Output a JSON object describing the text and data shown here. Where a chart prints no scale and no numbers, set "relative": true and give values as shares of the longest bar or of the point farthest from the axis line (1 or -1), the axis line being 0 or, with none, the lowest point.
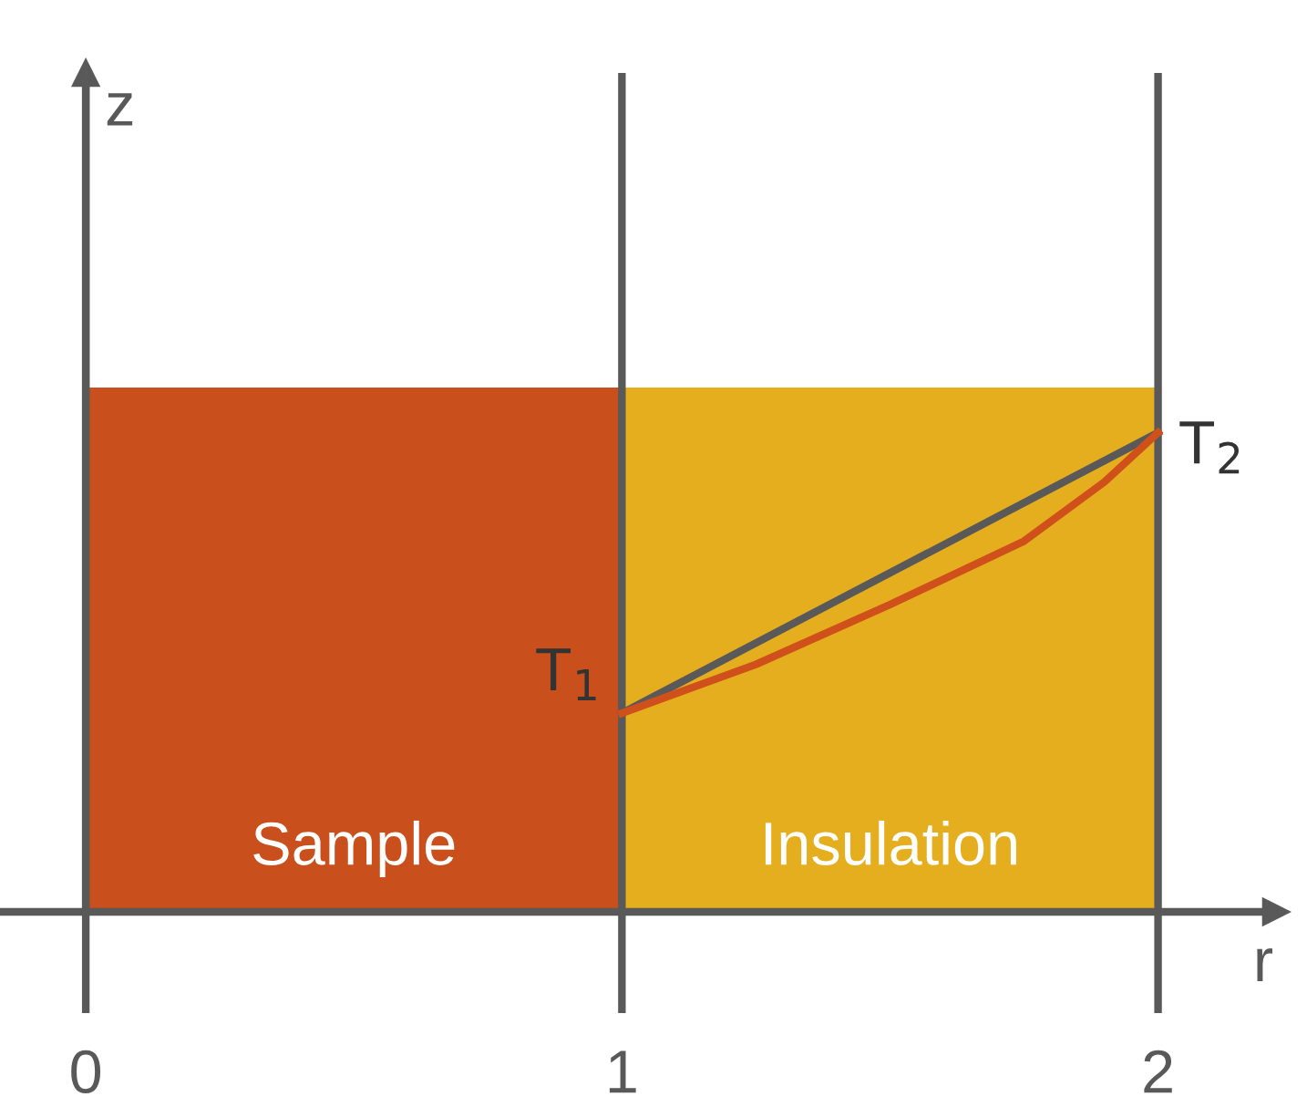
{
  "chart_data": {
    "type": "bar",
    "relative": true,
    "xlim": [
      -0.16,
      2.22
    ],
    "xticks": [
      0,
      1,
      2
    ],
    "xlabel": "r",
    "ylabel": "z",
    "tick_labels": "x",
    "grid": "x",
    "series": [
      {
        "x": [
          0.5,
          1.5
        ],
        "values": [
          1,
          1
        ],
        "colors": [
          "#c9501c",
          "#e5ae1e"
        ]
      },
      {
        "type": "line",
        "x": [
          1,
          2
        ],
        "values": [
          0.379,
          0.914
        ],
        "color": "#595959"
      },
      {
        "type": "line",
        "x": [
          1,
          1.25,
          1.5,
          1.75,
          1.9,
          2
        ],
        "values": [
          0.379,
          0.472,
          0.586,
          0.707,
          0.82,
          0.914
        ],
        "color": "#d0501c"
      }
    ],
    "annotations": [
      "Sample",
      "Insulation",
      {
        "text": "T$_{1}$",
        "x": 1,
        "y": 0.379
      },
      {
        "text": "T$_{2}$",
        "x": 2,
        "y": 0.914
      }
    ]
  }
}
